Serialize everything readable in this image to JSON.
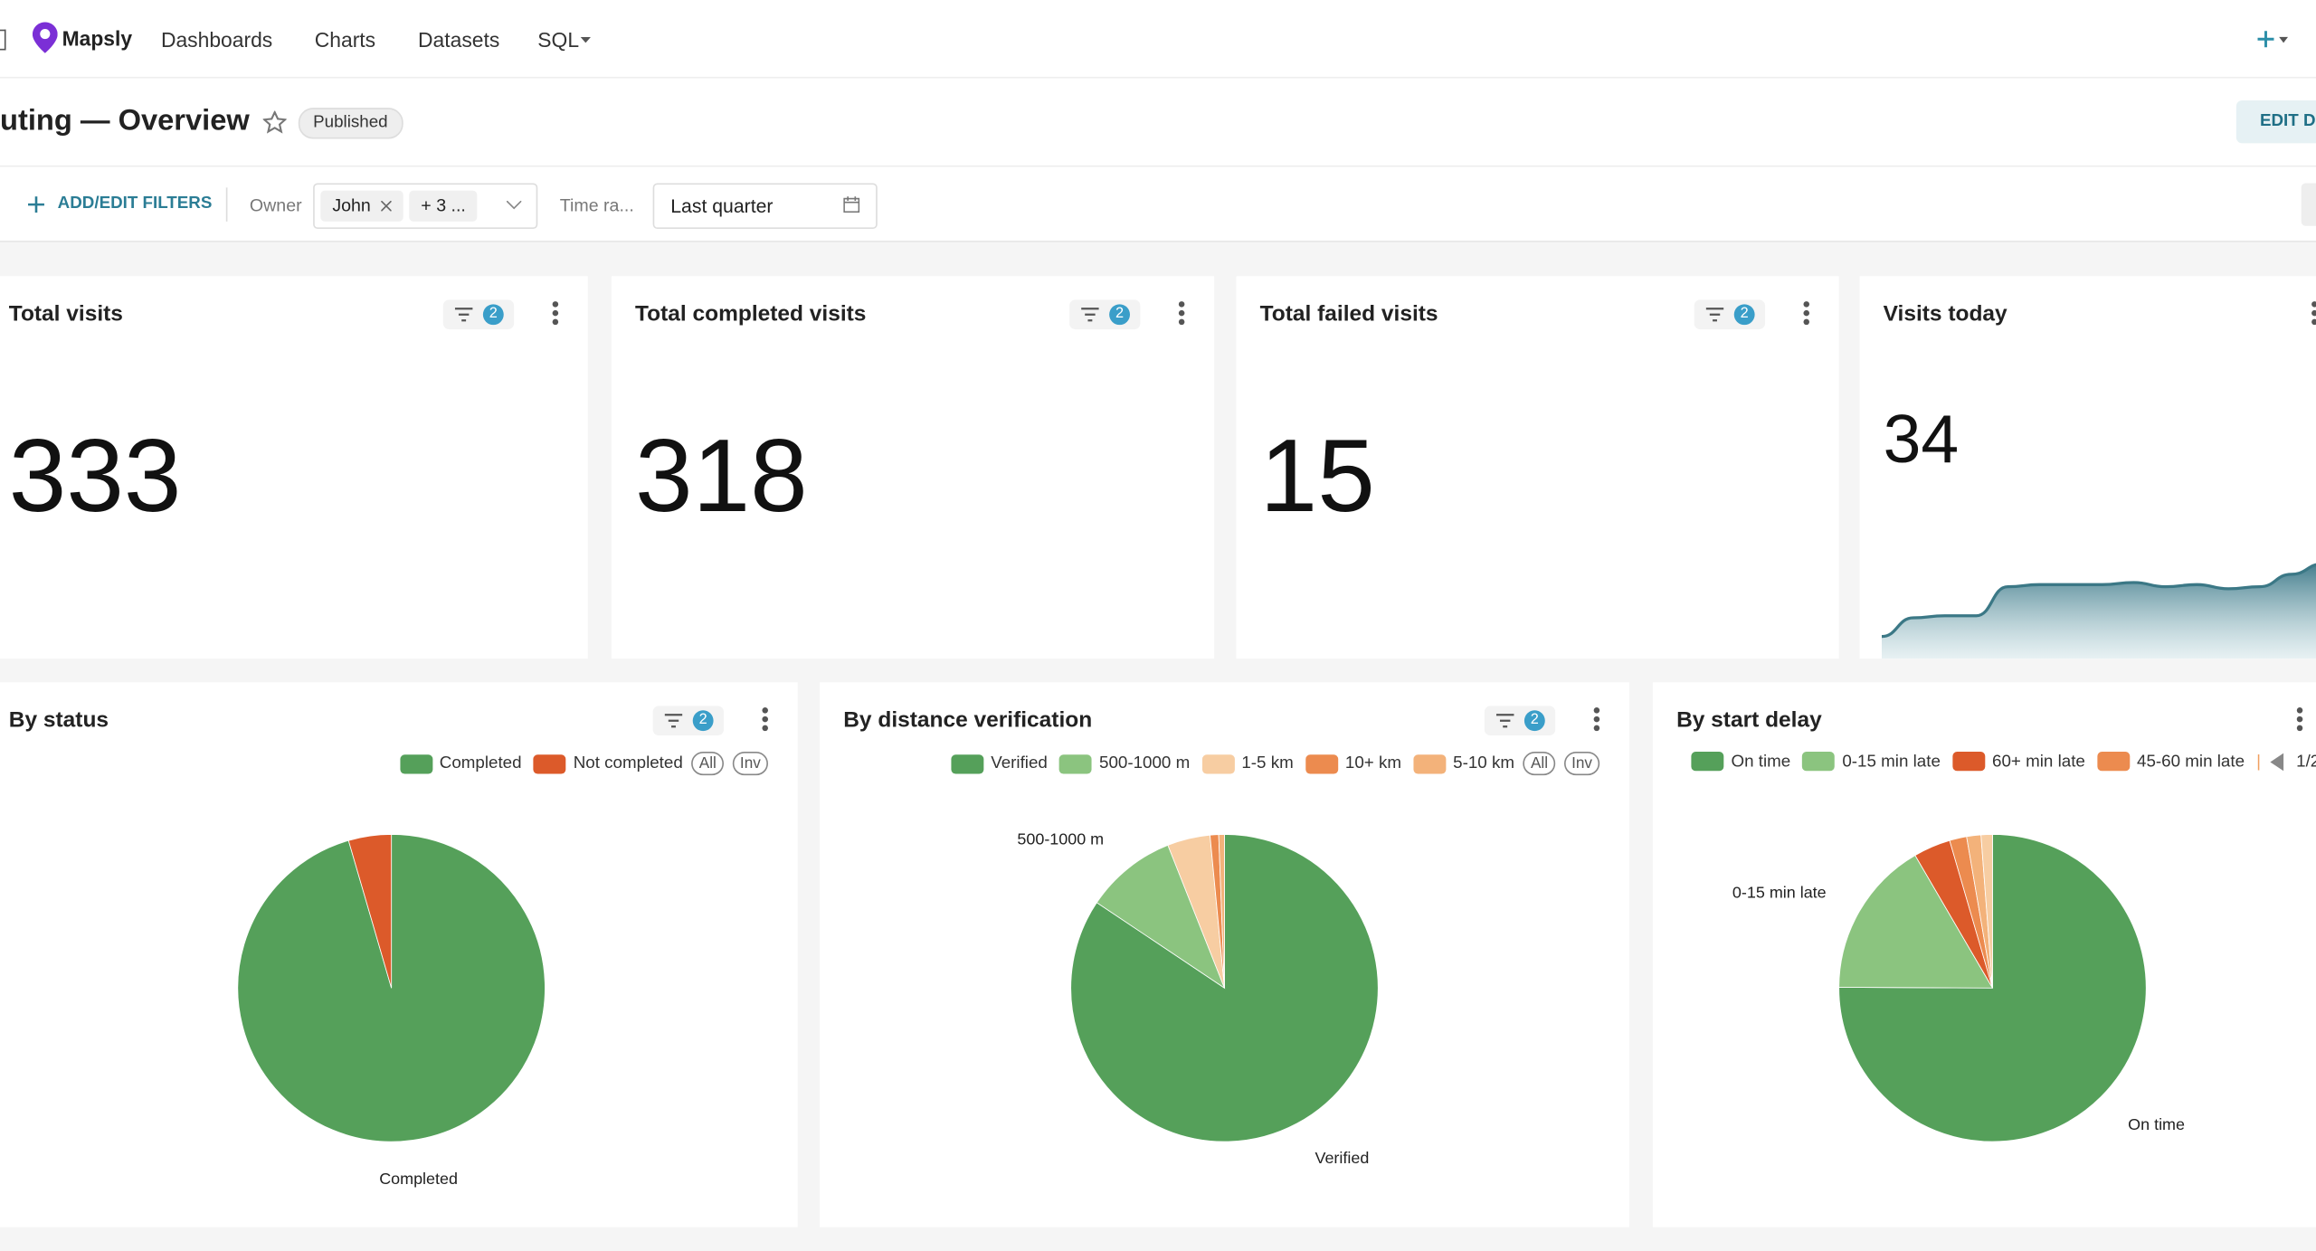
{
  "header": {
    "brand": "Mapsly",
    "nav": [
      "Dashboards",
      "Charts",
      "Datasets",
      "SQL"
    ]
  },
  "dashboard": {
    "title": "uting — Overview",
    "status": "Published",
    "edit_button": "EDIT DA"
  },
  "filters": {
    "add": "ADD/EDIT FILTERS",
    "owner_label": "Owner",
    "owner_chip": "John",
    "owner_more": "+ 3 ...",
    "time_label": "Time ra...",
    "time_value": "Last quarter"
  },
  "kpis": [
    {
      "title": "Total visits",
      "value": 333,
      "filter_count": 2
    },
    {
      "title": "Total completed visits",
      "value": 318,
      "filter_count": 2
    },
    {
      "title": "Total failed visits",
      "value": 15,
      "filter_count": 2
    },
    {
      "title": "Visits today",
      "value": 34,
      "trend": [
        0,
        9,
        10,
        10,
        24,
        25,
        25,
        25,
        26,
        24,
        25,
        23,
        24,
        30,
        35,
        37
      ]
    }
  ],
  "legend_buttons": [
    "All",
    "Inv"
  ],
  "pies": [
    {
      "title": "By status",
      "filter_count": 2,
      "slices": [
        {
          "name": "Completed",
          "value": 318,
          "color": "#55a05a",
          "show_label": true
        },
        {
          "name": "Not completed",
          "value": 15,
          "color": "#dc5a2a"
        }
      ]
    },
    {
      "title": "By distance verification",
      "filter_count": 2,
      "slices": [
        {
          "name": "Verified",
          "value": 281,
          "color": "#55a05a",
          "show_label": true
        },
        {
          "name": "500-1000 m",
          "value": 32,
          "color": "#8bc47f",
          "show_label": true
        },
        {
          "name": "1-5 km",
          "value": 15,
          "color": "#f7cda2"
        },
        {
          "name": "10+ km",
          "value": 3,
          "color": "#ec8b4f"
        },
        {
          "name": "5-10 km",
          "value": 2,
          "color": "#f3b27a"
        }
      ]
    },
    {
      "title": "By start delay",
      "pager": "1/2",
      "slices": [
        {
          "name": "On time",
          "value": 250,
          "color": "#55a05a",
          "show_label": true
        },
        {
          "name": "0-15 min late",
          "value": 55,
          "color": "#8bc47f",
          "show_label": true
        },
        {
          "name": "60+ min late",
          "value": 13,
          "color": "#dc5a2a"
        },
        {
          "name": "45-60 min late",
          "value": 6,
          "color": "#ec8b4f"
        },
        {
          "name": null,
          "value": 5,
          "color": "#f3b27a"
        },
        {
          "name": null,
          "value": 4,
          "color": "#f7cda2"
        }
      ]
    }
  ]
}
